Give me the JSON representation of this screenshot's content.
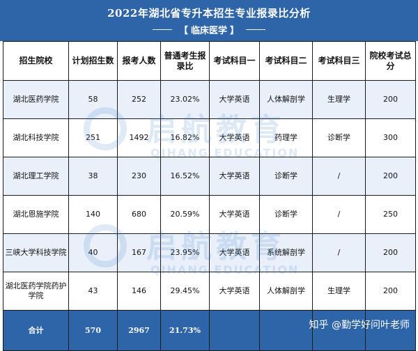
{
  "header": {
    "title": "2022年湖北省专升本招生专业报录比分析",
    "subtitle_open": "【",
    "subtitle": "临床医学",
    "subtitle_close": "】"
  },
  "table": {
    "columns": [
      "招生院校",
      "计划招生数",
      "报考人数",
      "普通考生报录比",
      "考试科目一",
      "考试科目二",
      "考试科目三",
      "院校考试总分"
    ],
    "rows": [
      [
        "湖北医药学院",
        "58",
        "252",
        "23.02%",
        "大学英语",
        "人体解剖学",
        "生理学",
        "200"
      ],
      [
        "湖北科技学院",
        "251",
        "1492",
        "16.82%",
        "大学英语",
        "药理学",
        "诊断学",
        "300"
      ],
      [
        "湖北理工学院",
        "38",
        "230",
        "16.52%",
        "大学英语",
        "诊断学",
        "/",
        "200"
      ],
      [
        "湖北恩施学院",
        "140",
        "680",
        "20.59%",
        "大学英语",
        "诊断学",
        "/",
        "250"
      ],
      [
        "三峡大学科技学院",
        "40",
        "167",
        "23.95%",
        "大学英语",
        "系统解剖学",
        "/",
        "200"
      ],
      [
        "湖北医药学院药护学院",
        "43",
        "146",
        "29.45%",
        "大学英语",
        "人体解剖学",
        "生理学",
        "200"
      ]
    ],
    "total": [
      "合计",
      "570",
      "2967",
      "21.73%"
    ]
  },
  "watermark": {
    "cn": "启航教育",
    "en": "QIHANG EDUCATION"
  },
  "credit": "知乎 @勤学好问叶老师",
  "colors": {
    "header_bg": "#2e64a8",
    "row_alt_bg": "#e9f0fa",
    "border": "#1a1a1a"
  }
}
